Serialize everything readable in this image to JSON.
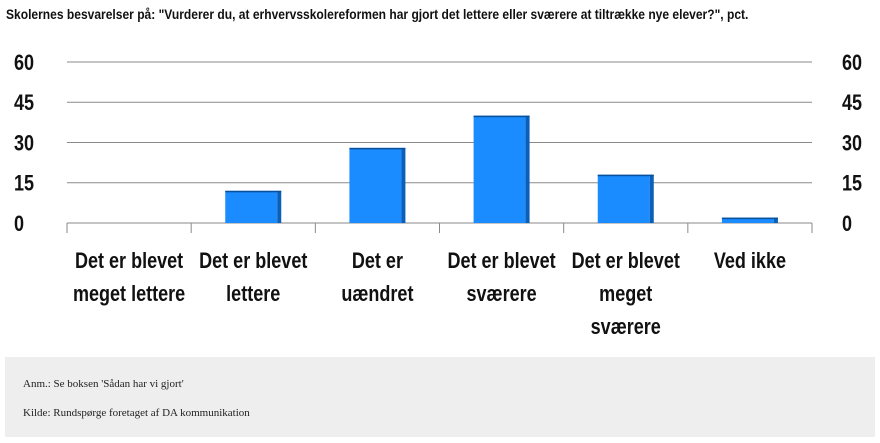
{
  "chart_data": {
    "type": "bar",
    "title": "Skolernes besvarelser på: \"Vurderer du, at erhvervsskolereformen har gjort det lettere eller sværere at tiltrække nye elever?\", pct.",
    "categories": [
      [
        "Det er blevet",
        "meget lettere"
      ],
      [
        "Det er blevet",
        "lettere"
      ],
      [
        "Det er",
        "uændret"
      ],
      [
        "Det er blevet",
        "sværere"
      ],
      [
        "Det er blevet",
        "meget",
        "sværere"
      ],
      [
        "Ved ikke"
      ]
    ],
    "values": [
      0,
      12,
      28,
      40,
      18,
      2
    ],
    "ylim": [
      0,
      60
    ],
    "yticks": [
      0,
      15,
      30,
      45,
      60
    ],
    "grid": true,
    "secondary_y_axis": true,
    "bar_color": "#1a8cff"
  },
  "footer": {
    "note": "Anm.: Se boksen 'Sådan har vi gjort'",
    "source": "Kilde: Rundspørge foretaget af DA kommunikation"
  }
}
